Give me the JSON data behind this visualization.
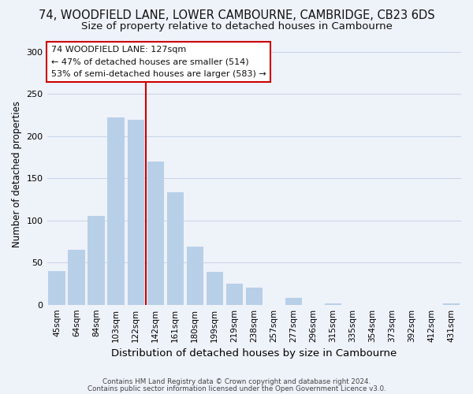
{
  "title": "74, WOODFIELD LANE, LOWER CAMBOURNE, CAMBRIDGE, CB23 6DS",
  "subtitle": "Size of property relative to detached houses in Cambourne",
  "xlabel": "Distribution of detached houses by size in Cambourne",
  "ylabel": "Number of detached properties",
  "bar_labels": [
    "45sqm",
    "64sqm",
    "84sqm",
    "103sqm",
    "122sqm",
    "142sqm",
    "161sqm",
    "180sqm",
    "199sqm",
    "219sqm",
    "238sqm",
    "257sqm",
    "277sqm",
    "296sqm",
    "315sqm",
    "335sqm",
    "354sqm",
    "373sqm",
    "392sqm",
    "412sqm",
    "431sqm"
  ],
  "bar_values": [
    40,
    65,
    105,
    222,
    219,
    170,
    133,
    69,
    39,
    25,
    20,
    0,
    8,
    0,
    2,
    0,
    0,
    0,
    0,
    0,
    2
  ],
  "bar_color": "#b8cfe8",
  "vline_color": "#cc0000",
  "vline_bar_index": 4,
  "ylim": [
    0,
    310
  ],
  "yticks": [
    0,
    50,
    100,
    150,
    200,
    250,
    300
  ],
  "annotation_title": "74 WOODFIELD LANE: 127sqm",
  "annotation_line1": "← 47% of detached houses are smaller (514)",
  "annotation_line2": "53% of semi-detached houses are larger (583) →",
  "annotation_box_color": "#ffffff",
  "annotation_box_edge": "#cc0000",
  "footer1": "Contains HM Land Registry data © Crown copyright and database right 2024.",
  "footer2": "Contains public sector information licensed under the Open Government Licence v3.0.",
  "background_color": "#eef2f9",
  "plot_bg_color": "#eef2f9",
  "title_fontsize": 10.5,
  "subtitle_fontsize": 9.5,
  "ylabel_fontsize": 8.5,
  "xlabel_fontsize": 9.5
}
